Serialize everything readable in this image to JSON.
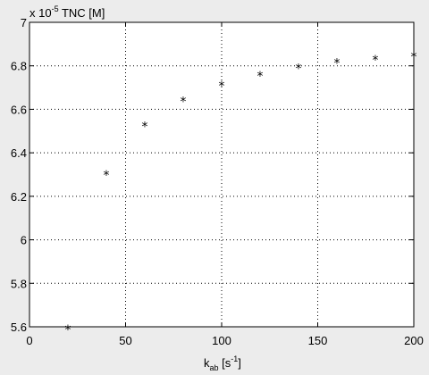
{
  "chart_data": {
    "type": "scatter",
    "x": [
      20,
      40,
      60,
      80,
      100,
      120,
      140,
      160,
      180,
      200
    ],
    "y": [
      5.6,
      6.31,
      6.535,
      6.65,
      6.72,
      6.765,
      6.8,
      6.825,
      6.84,
      6.855
    ],
    "xlim": [
      0,
      200
    ],
    "ylim": [
      5.6,
      7.0
    ],
    "xticks": [
      0,
      50,
      100,
      150,
      200
    ],
    "xtick_labels": [
      "0",
      "50",
      "100",
      "150",
      "200"
    ],
    "yticks": [
      5.6,
      5.8,
      6.0,
      6.2,
      6.4,
      6.6,
      6.8,
      7.0
    ],
    "ytick_labels": [
      "5.6",
      "5.8",
      "6",
      "6.2",
      "6.4",
      "6.6",
      "6.8",
      "7"
    ],
    "grid": true,
    "marker": "*",
    "marker_color": "#000000",
    "background_color": "#ffffff",
    "figure_color": "#ececec",
    "xlabel": {
      "main": "k",
      "sub": "ab",
      "unit_open": " [s",
      "unit_sup": "-1",
      "unit_close": "]"
    },
    "ylabel": {
      "prefix": "x 10",
      "sup": "-5",
      "text": " TNC [M]"
    }
  }
}
